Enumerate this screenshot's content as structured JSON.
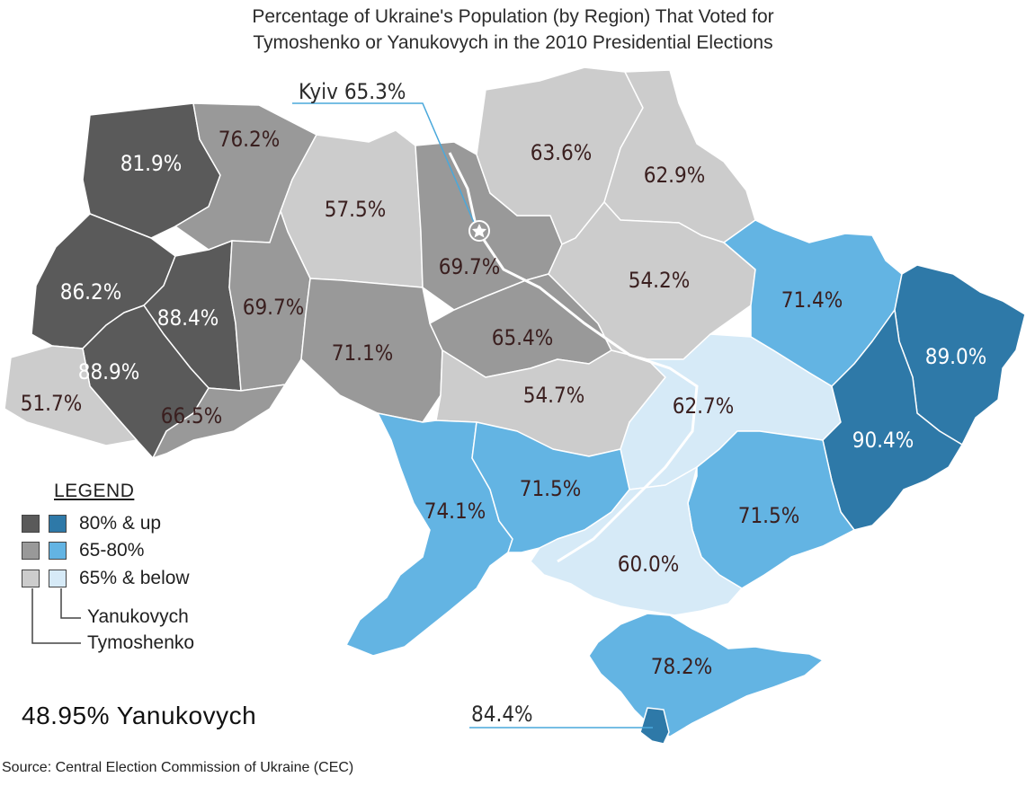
{
  "title_line1": "Percentage of Ukraine's Population (by Region) That Voted for",
  "title_line2": "Tymoshenko or Yanukovych in the 2010 Presidential Elections",
  "colors": {
    "tymoshenko_80_up": "#5a5a5a",
    "tymoshenko_65_80": "#999999",
    "tymoshenko_65_below": "#cccccc",
    "yanukovych_80_up": "#2e79a8",
    "yanukovych_65_80": "#63b4e3",
    "yanukovych_65_below": "#d6eaf7"
  },
  "regions": [
    {
      "id": "volyn",
      "value": "81.9%",
      "candidate": "Tymoshenko"
    },
    {
      "id": "rivne",
      "value": "76.2%",
      "candidate": "Tymoshenko"
    },
    {
      "id": "zhytomyr",
      "value": "57.5%",
      "candidate": "Tymoshenko"
    },
    {
      "id": "kyiv-oblast",
      "value": "69.7%",
      "candidate": "Tymoshenko"
    },
    {
      "id": "chernihiv",
      "value": "63.6%",
      "candidate": "Tymoshenko"
    },
    {
      "id": "sumy",
      "value": "62.9%",
      "candidate": "Tymoshenko"
    },
    {
      "id": "lviv",
      "value": "86.2%",
      "candidate": "Tymoshenko"
    },
    {
      "id": "ternopil",
      "value": "88.4%",
      "candidate": "Tymoshenko"
    },
    {
      "id": "khmelnytskyi",
      "value": "69.7%",
      "candidate": "Tymoshenko"
    },
    {
      "id": "vinnytsia",
      "value": "71.1%",
      "candidate": "Tymoshenko"
    },
    {
      "id": "cherkasy",
      "value": "65.4%",
      "candidate": "Tymoshenko"
    },
    {
      "id": "poltava",
      "value": "54.2%",
      "candidate": "Tymoshenko"
    },
    {
      "id": "ivano-frankivsk",
      "value": "88.9%",
      "candidate": "Tymoshenko"
    },
    {
      "id": "zakarpattia",
      "value": "51.7%",
      "candidate": "Tymoshenko"
    },
    {
      "id": "chernivtsi",
      "value": "66.5%",
      "candidate": "Tymoshenko"
    },
    {
      "id": "kirovohrad",
      "value": "54.7%",
      "candidate": "Tymoshenko"
    },
    {
      "id": "kharkiv",
      "value": "71.4%",
      "candidate": "Yanukovych"
    },
    {
      "id": "luhansk",
      "value": "89.0%",
      "candidate": "Yanukovych"
    },
    {
      "id": "dnipropetrovsk",
      "value": "62.7%",
      "candidate": "Yanukovych"
    },
    {
      "id": "donetsk",
      "value": "90.4%",
      "candidate": "Yanukovych"
    },
    {
      "id": "odesa",
      "value": "74.1%",
      "candidate": "Yanukovych"
    },
    {
      "id": "mykolaiv",
      "value": "71.5%",
      "candidate": "Yanukovych"
    },
    {
      "id": "zaporizhzhia",
      "value": "71.5%",
      "candidate": "Yanukovych"
    },
    {
      "id": "kherson",
      "value": "60.0%",
      "candidate": "Yanukovych"
    },
    {
      "id": "crimea",
      "value": "78.2%",
      "candidate": "Yanukovych"
    },
    {
      "id": "sevastopol",
      "value": "84.4%",
      "candidate": "Yanukovych"
    }
  ],
  "callouts": {
    "kyiv": "Kyiv 65.3%",
    "sevastopol": "84.4%"
  },
  "legend": {
    "title": "LEGEND",
    "rows": [
      "80% & up",
      "65-80%",
      "65% & below"
    ],
    "yanukovych_label": "Yanukovych",
    "tymoshenko_label": "Tymoshenko"
  },
  "result_text": "48.95% Yanukovych",
  "source": "Source: Central Election Commission of Ukraine (CEC)"
}
